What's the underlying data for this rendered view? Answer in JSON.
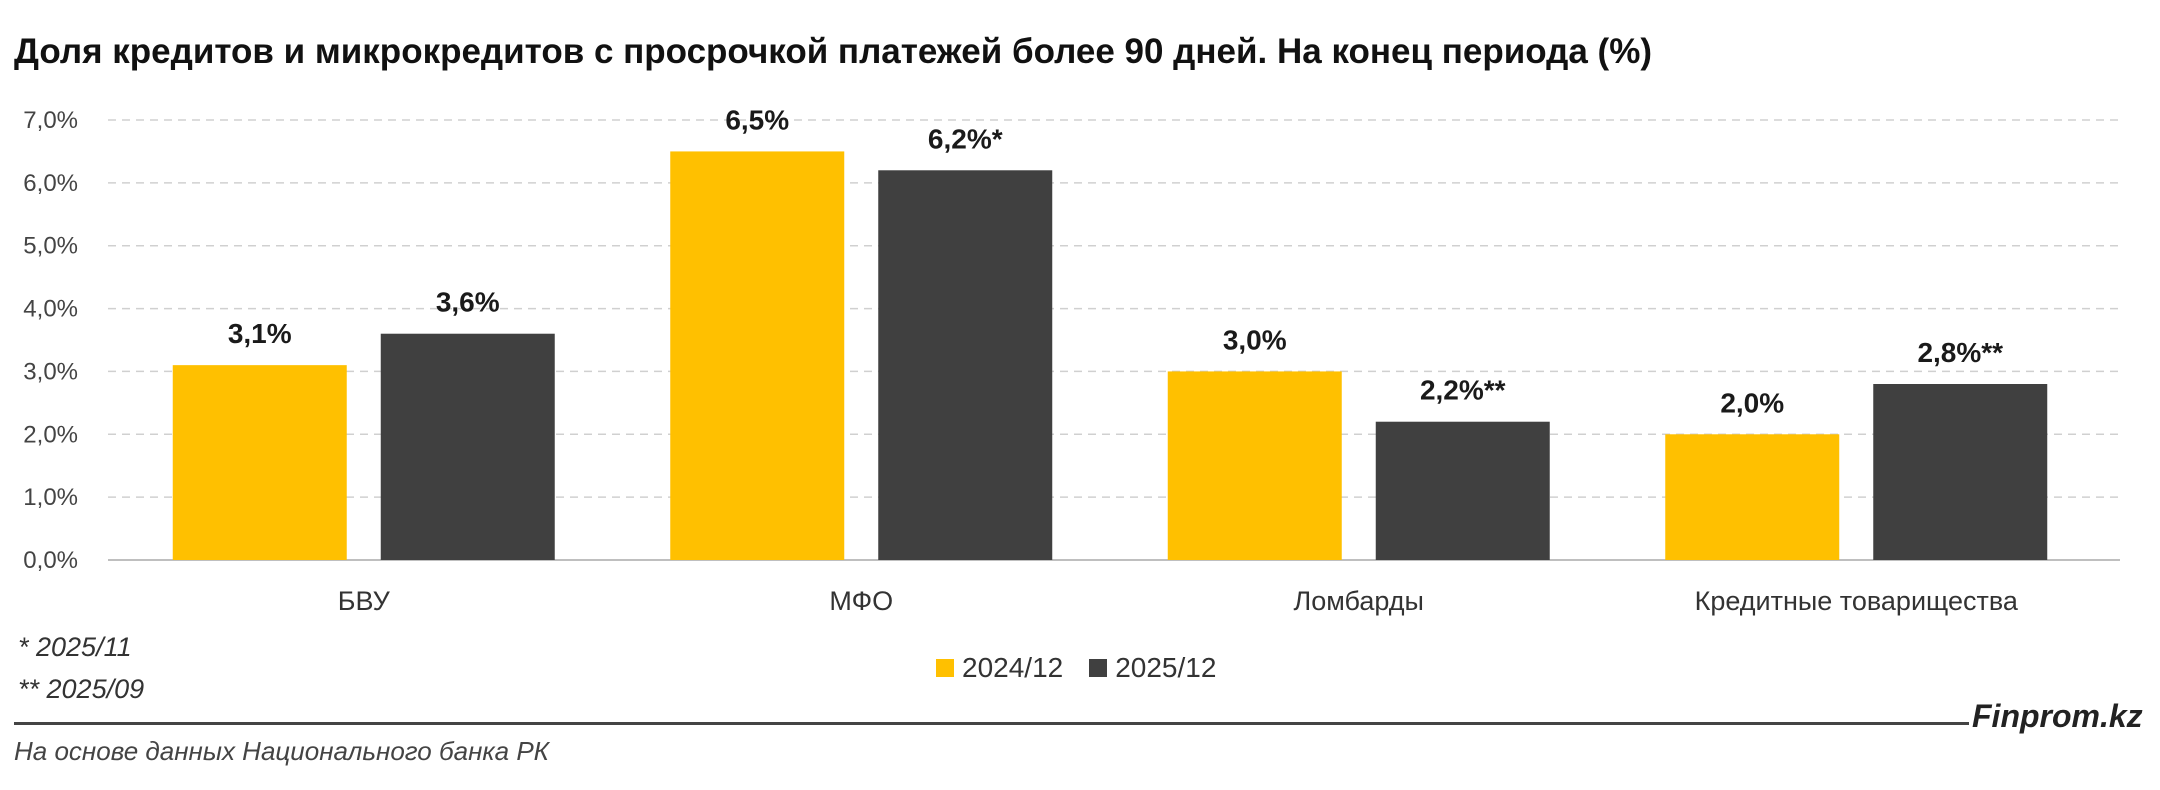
{
  "chart_data": {
    "type": "bar",
    "title": "Доля кредитов и микрокредитов с просрочкой платежей более 90 дней. На конец периода (%)",
    "categories": [
      "БВУ",
      "МФО",
      "Ломбарды",
      "Кредитные товарищества"
    ],
    "series": [
      {
        "name": "2024/12",
        "color": "#FFC000",
        "values": [
          3.1,
          6.5,
          3.0,
          2.0
        ],
        "labels": [
          "3,1%",
          "6,5%",
          "3,0%",
          "2,0%"
        ]
      },
      {
        "name": "2025/12",
        "color": "#404040",
        "values": [
          3.6,
          6.2,
          2.2,
          2.8
        ],
        "labels": [
          "3,6%",
          "6,2%*",
          "2,2%**",
          "2,8%**"
        ]
      }
    ],
    "ylim": [
      0,
      7
    ],
    "yticks": [
      0,
      1,
      2,
      3,
      4,
      5,
      6,
      7
    ],
    "ytick_labels": [
      "0,0%",
      "1,0%",
      "2,0%",
      "3,0%",
      "4,0%",
      "5,0%",
      "6,0%",
      "7,0%"
    ],
    "grid": true,
    "legend_placement": "bottom-center"
  },
  "footnotes": [
    "* 2025/11",
    "** 2025/09"
  ],
  "brand": "Finprom.kz",
  "source": "На основе данных Национального банка РК"
}
